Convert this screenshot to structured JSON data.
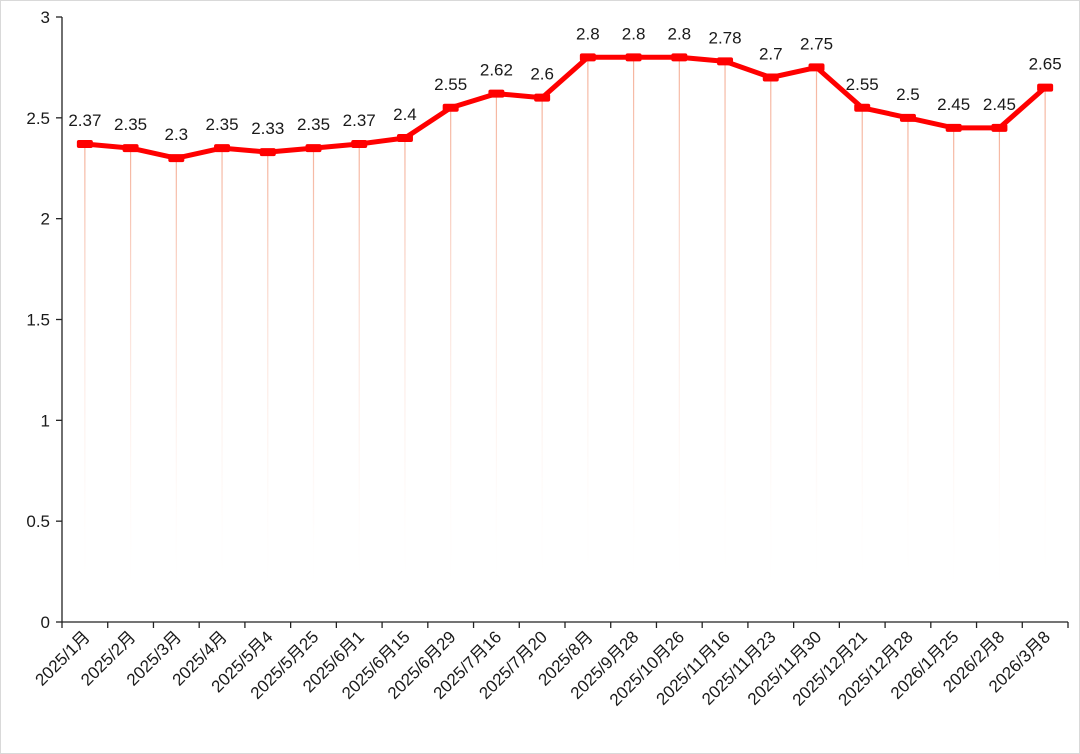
{
  "chart_data": {
    "type": "line",
    "title": "",
    "xlabel": "",
    "ylabel": "",
    "ylim": [
      0,
      3
    ],
    "yticks": [
      0,
      0.5,
      1,
      1.5,
      2,
      2.5,
      3
    ],
    "grid": false,
    "legend": "none",
    "line_color": "#ff0000",
    "drop_line_color": "#f7b7a3",
    "categories": [
      "2025/1月",
      "2025/2月",
      "2025/3月",
      "2025/4月",
      "2025/5月4",
      "2025/5月25",
      "2025/6月1",
      "2025/6月15",
      "2025/6月29",
      "2025/7月16",
      "2025/7月20",
      "2025/8月",
      "2025/9月28",
      "2025/10月26",
      "2025/11月16",
      "2025/11月23",
      "2025/11月30",
      "2025/12月21",
      "2025/12月28",
      "2026/1月25",
      "2026/2月8",
      "2026/3月8"
    ],
    "values": [
      2.37,
      2.35,
      2.3,
      2.35,
      2.33,
      2.35,
      2.37,
      2.4,
      2.55,
      2.62,
      2.6,
      2.8,
      2.8,
      2.8,
      2.78,
      2.7,
      2.75,
      2.55,
      2.5,
      2.45,
      2.45,
      2.65
    ],
    "data_labels": [
      "2.37",
      "2.35",
      "2.3",
      "2.35",
      "2.33",
      "2.35",
      "2.37",
      "2.4",
      "2.55",
      "2.62",
      "2.6",
      "2.8",
      "2.8",
      "2.8",
      "2.78",
      "2.7",
      "2.75",
      "2.55",
      "2.5",
      "2.45",
      "2.45",
      "2.65"
    ]
  }
}
